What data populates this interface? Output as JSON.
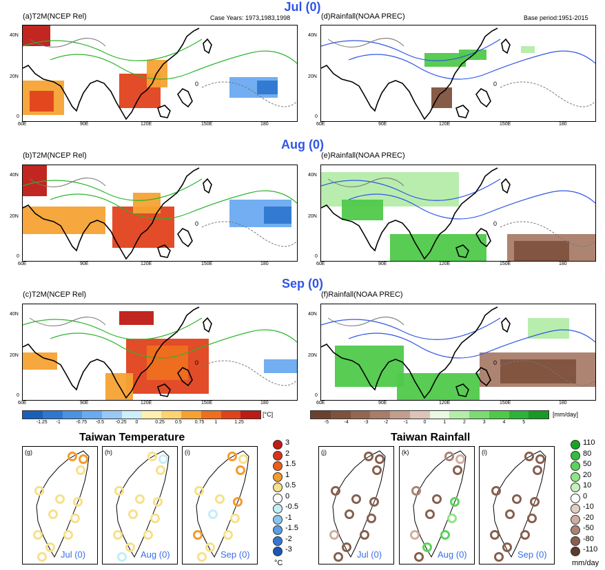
{
  "months": {
    "jul": "Jul (0)",
    "aug": "Aug (0)",
    "sep": "Sep (0)"
  },
  "panels": {
    "a": {
      "title": "(a)T2M(NCEP Rel)",
      "note": "Case Years: 1973,1983,1998"
    },
    "b": {
      "title": "(b)T2M(NCEP Rel)"
    },
    "c": {
      "title": "(c)T2M(NCEP Rel)"
    },
    "d": {
      "title": "(d)Rainfall(NOAA PREC)",
      "note": "Base period:1951-2015"
    },
    "e": {
      "title": "(e)Rainfall(NOAA PREC)"
    },
    "f": {
      "title": "(f)Rainfall(NOAA PREC)"
    }
  },
  "lat_ticks": [
    "40N",
    "20N",
    "0"
  ],
  "lon_ticks": [
    "60E",
    "90E",
    "120E",
    "150E",
    "180"
  ],
  "contour_label": "0",
  "temp_colorbar": {
    "unit": "[°C]",
    "labels": [
      "-1.25",
      "-1",
      "-0.75",
      "-0.5",
      "-0.25",
      "0",
      "0.25",
      "0.5",
      "0.75",
      "1",
      "1.25"
    ],
    "colors": [
      "#1c5fb8",
      "#2f78d0",
      "#4b92e0",
      "#6aaaf0",
      "#96c9f7",
      "#cdeefc",
      "#fff0b0",
      "#fcd272",
      "#f5a233",
      "#ee6f1f",
      "#e0421c",
      "#bf1a14"
    ]
  },
  "rain_colorbar": {
    "unit": "[mm/day]",
    "labels": [
      "-5",
      "-4",
      "-3",
      "-2",
      "-1",
      "0",
      "1",
      "2",
      "3",
      "4",
      "5"
    ],
    "colors": [
      "#6b4230",
      "#80523e",
      "#946652",
      "#a97d6a",
      "#c19e8e",
      "#dcc4b8",
      "#e9f9e2",
      "#b4eca9",
      "#7cdb72",
      "#4fc94a",
      "#2db33a",
      "#179a26"
    ]
  },
  "taiwan_temp": {
    "title": "Taiwan Temperature",
    "panels": [
      {
        "id": "(g)",
        "month": "Jul (0)"
      },
      {
        "id": "(h)",
        "month": "Aug (0)"
      },
      {
        "id": "(i)",
        "month": "Sep (0)"
      }
    ],
    "legend_values": [
      "3",
      "2",
      "1.5",
      "1",
      "0.5",
      "0",
      "-0.5",
      "-1",
      "-1.5",
      "-2",
      "-3"
    ],
    "legend_colors": [
      "#c01b14",
      "#d8341a",
      "#ec5c1e",
      "#f39a2c",
      "#f7e08a",
      "#ffffff",
      "#c4eef8",
      "#88c4f0",
      "#5a9ee4",
      "#3578d2",
      "#1a56b6"
    ],
    "unit": "°C"
  },
  "taiwan_rain": {
    "title": "Taiwan Rainfall",
    "panels": [
      {
        "id": "(j)",
        "month": "Jul (0)"
      },
      {
        "id": "(k)",
        "month": "Aug (0)"
      },
      {
        "id": "(l)",
        "month": "Sep (0)"
      }
    ],
    "legend_values": [
      "110",
      "80",
      "50",
      "20",
      "10",
      "0",
      "-10",
      "-20",
      "-50",
      "-80",
      "-110"
    ],
    "legend_colors": [
      "#17a327",
      "#32bd3e",
      "#5cd35a",
      "#8ee584",
      "#c4f2bb",
      "#ffffff",
      "#e4cfc5",
      "#cfaea0",
      "#a98373",
      "#875f4d",
      "#5d3a29"
    ],
    "unit": "mm/day"
  }
}
